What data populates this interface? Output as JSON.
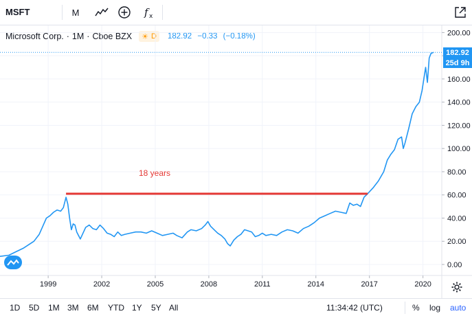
{
  "toolbar": {
    "symbol": "MSFT",
    "interval": "M",
    "chart_style": "line-chart-icon",
    "compare": "add-compare-icon",
    "indicators": "indicators-fx-icon",
    "snapshot": "snapshot-icon"
  },
  "legend": {
    "title": "Microsoft Corp.",
    "interval": "1M",
    "exchange": "Cboe BZX",
    "session_badge": "D",
    "last": "182.92",
    "change": "−0.33",
    "change_pct": "(−0.18%)"
  },
  "price_tag": {
    "value": "182.92",
    "countdown": "25d 9h"
  },
  "annotation": {
    "text": "18 years",
    "color": "#e53935",
    "start_year": 2000.0,
    "end_year": 2016.9,
    "level": 61
  },
  "bottombar": {
    "ranges": [
      "1D",
      "5D",
      "1M",
      "3M",
      "6M",
      "YTD",
      "1Y",
      "5Y",
      "All"
    ],
    "time": "11:34:42 (UTC)",
    "percent": "%",
    "log": "log",
    "auto": "auto"
  },
  "colors": {
    "line": "#2196f3",
    "accent": "#2962ff",
    "grid": "#f0f3fa",
    "annotation": "#e53935",
    "badge": "#ff9800"
  },
  "chart_data": {
    "type": "line",
    "title": "Microsoft Corp. · 1M · Cboe BZX",
    "xlabel": "",
    "ylabel": "",
    "x_ticks": [
      "1999",
      "2002",
      "2005",
      "2008",
      "2011",
      "2014",
      "2017",
      "2020"
    ],
    "y_ticks": [
      "0.00",
      "20.00",
      "40.00",
      "60.00",
      "80.00",
      "100.00",
      "120.00",
      "140.00",
      "160.00",
      "180.00",
      "200.00"
    ],
    "x_range": [
      1996.3,
      2020.7
    ],
    "ylim": [
      -10,
      205
    ],
    "grid": true,
    "series": [
      {
        "name": "MSFT",
        "x": [
          1996.3,
          1996.8,
          1997.2,
          1997.6,
          1997.9,
          1998.2,
          1998.5,
          1998.7,
          1998.9,
          1999.1,
          1999.3,
          1999.5,
          1999.7,
          1999.85,
          1999.95,
          2000.0,
          2000.1,
          2000.2,
          2000.3,
          2000.4,
          2000.5,
          2000.6,
          2000.8,
          2000.95,
          2001.1,
          2001.3,
          2001.5,
          2001.7,
          2001.9,
          2002.1,
          2002.3,
          2002.5,
          2002.7,
          2002.9,
          2003.1,
          2003.3,
          2003.6,
          2003.9,
          2004.2,
          2004.5,
          2004.8,
          2005.1,
          2005.4,
          2005.7,
          2006.0,
          2006.2,
          2006.5,
          2006.8,
          2007.0,
          2007.3,
          2007.6,
          2007.8,
          2007.95,
          2008.1,
          2008.3,
          2008.5,
          2008.7,
          2008.9,
          2009.05,
          2009.2,
          2009.4,
          2009.6,
          2009.8,
          2010.0,
          2010.2,
          2010.4,
          2010.6,
          2010.8,
          2011.0,
          2011.2,
          2011.5,
          2011.8,
          2012.1,
          2012.4,
          2012.7,
          2013.0,
          2013.3,
          2013.6,
          2013.9,
          2014.2,
          2014.5,
          2014.8,
          2015.1,
          2015.4,
          2015.7,
          2015.9,
          2016.1,
          2016.3,
          2016.5,
          2016.7,
          2016.9,
          2017.2,
          2017.5,
          2017.8,
          2018.0,
          2018.2,
          2018.4,
          2018.6,
          2018.8,
          2018.9,
          2019.0,
          2019.2,
          2019.4,
          2019.6,
          2019.8,
          2019.95,
          2020.05,
          2020.15,
          2020.25,
          2020.35,
          2020.45,
          2020.6
        ],
        "y": [
          7,
          8,
          11,
          14,
          17,
          20,
          26,
          33,
          40,
          42,
          45,
          47,
          46,
          49,
          55,
          58,
          52,
          40,
          30,
          35,
          34,
          28,
          22,
          27,
          32,
          34,
          31,
          30,
          34,
          31,
          27,
          26,
          24,
          28,
          25,
          26,
          27,
          28,
          28,
          27,
          29,
          27,
          25,
          26,
          27,
          25,
          23,
          28,
          30,
          29,
          31,
          34,
          37,
          33,
          30,
          27,
          25,
          22,
          18,
          16,
          21,
          24,
          26,
          30,
          29,
          28,
          24,
          25,
          27,
          25,
          26,
          25,
          28,
          30,
          29,
          27,
          31,
          33,
          36,
          40,
          42,
          44,
          46,
          45,
          44,
          53,
          51,
          52,
          50,
          58,
          61,
          66,
          72,
          80,
          90,
          95,
          99,
          108,
          110,
          100,
          105,
          117,
          130,
          136,
          140,
          150,
          160,
          170,
          157,
          178,
          182,
          183
        ]
      }
    ]
  }
}
